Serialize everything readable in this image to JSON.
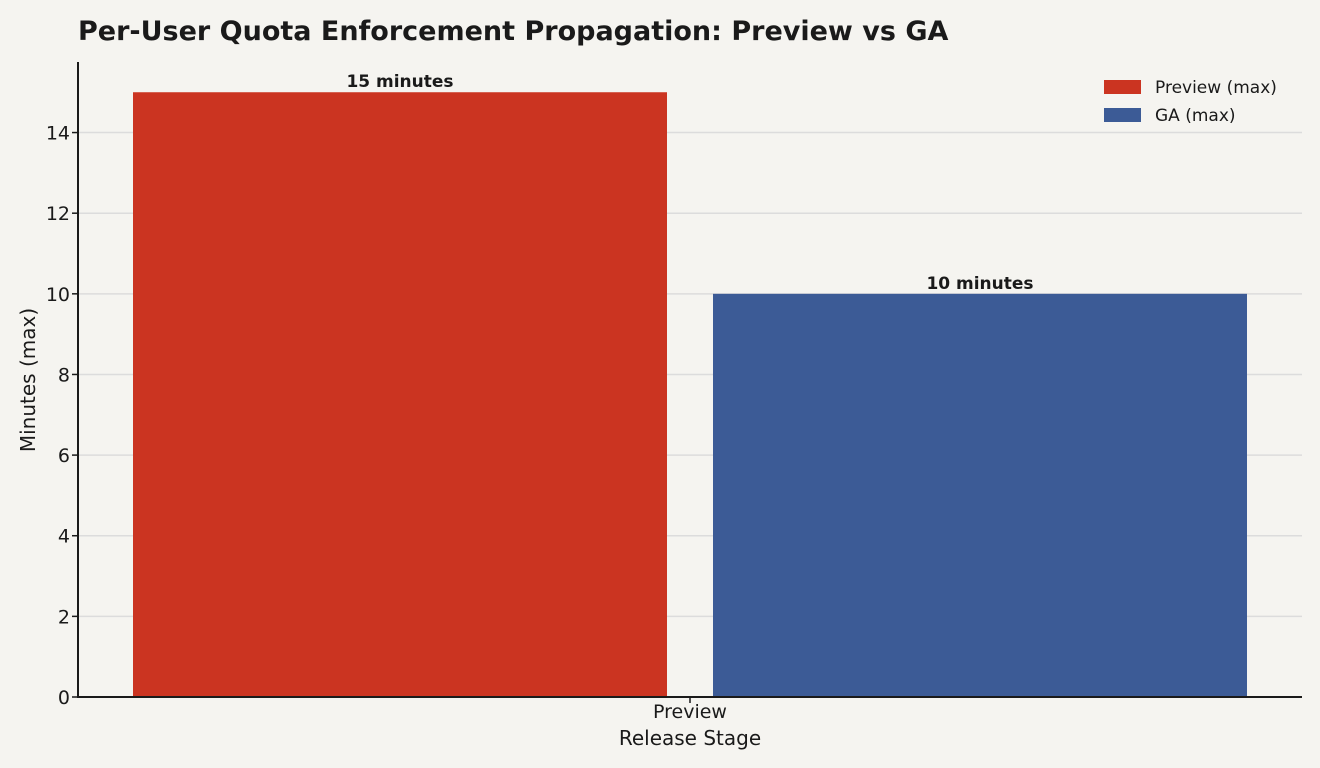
{
  "chart_data": {
    "type": "bar",
    "title": "Per-User Quota Enforcement Propagation: Preview vs GA",
    "xlabel": "Release Stage",
    "ylabel": "Minutes (max)",
    "categories": [
      "Preview"
    ],
    "series": [
      {
        "name": "Preview (max)",
        "values": [
          15
        ],
        "color": "#cb3421",
        "label": "15 minutes"
      },
      {
        "name": "GA (max)",
        "values": [
          10
        ],
        "color": "#3c5b96",
        "label": "10 minutes"
      }
    ],
    "ylim": [
      0,
      15.75
    ],
    "yticks": [
      0,
      2,
      4,
      6,
      8,
      10,
      12,
      14
    ],
    "grid": "y",
    "legend_position": "top-right"
  }
}
